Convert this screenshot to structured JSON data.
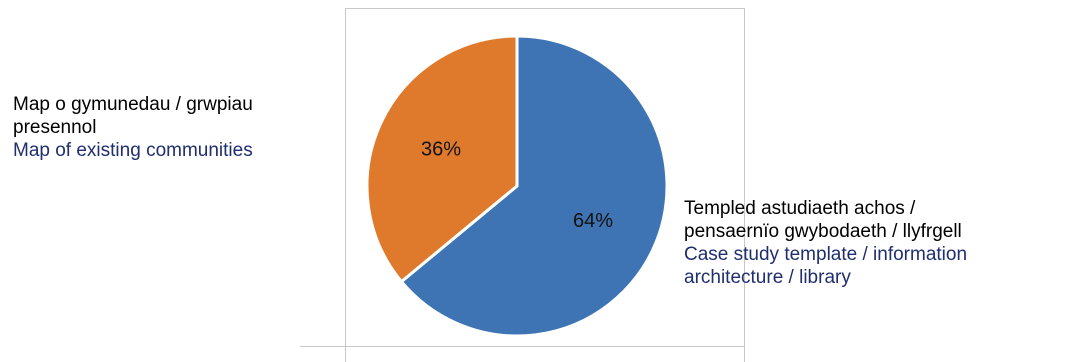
{
  "chart_data": {
    "type": "pie",
    "title": "",
    "slices": [
      {
        "value": 64,
        "value_label": "64%",
        "color": "#3f74b4",
        "label_cy": "Templed astudiaeth achos / pensaernïo gwybodaeth / llyfrgell",
        "label_en": "Case study template / information architecture / library"
      },
      {
        "value": 36,
        "value_label": "36%",
        "color": "#df7a2c",
        "label_cy": "Map o gymunedau / grwpiau presennol",
        "label_en": "Map of existing communities"
      }
    ]
  },
  "labels": {
    "left": {
      "cy_line1": "Map o gymunedau / grwpiau",
      "cy_line2": "presennol",
      "en_line1": "Map of existing communities"
    },
    "right": {
      "cy_line1": "Templed astudiaeth achos /",
      "cy_line2": "pensaernïo gwybodaeth / llyfrgell",
      "en_line1": "Case study template / information",
      "en_line2": "architecture / library"
    }
  }
}
